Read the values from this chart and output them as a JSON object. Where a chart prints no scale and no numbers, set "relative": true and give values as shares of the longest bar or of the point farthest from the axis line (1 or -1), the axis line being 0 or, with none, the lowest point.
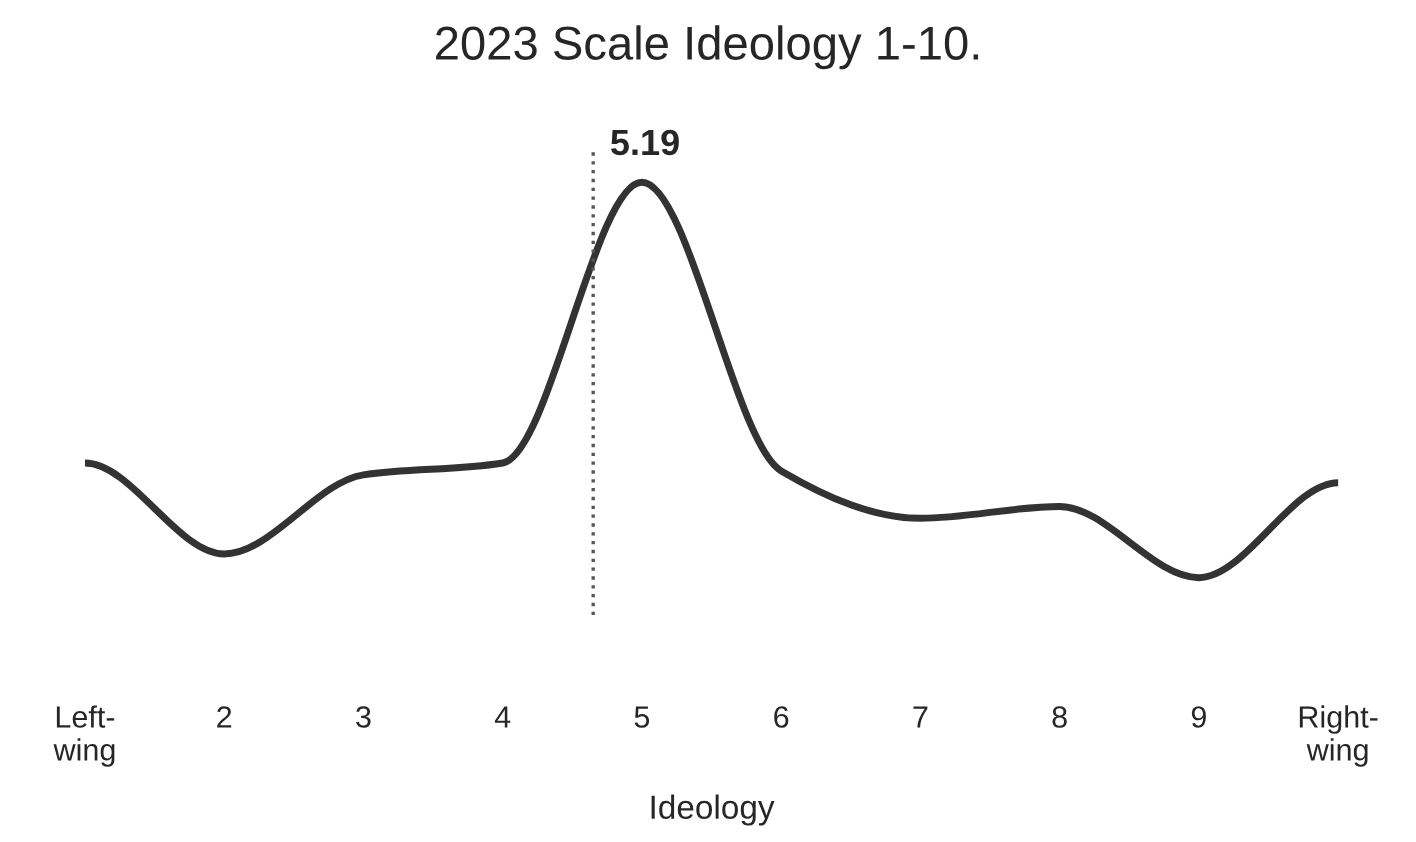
{
  "chart_data": {
    "type": "line",
    "title": "2023 Scale Ideology 1-10.",
    "xlabel": "Ideology",
    "relative": true,
    "x": [
      1,
      2,
      3,
      4,
      5,
      6,
      7,
      8,
      9,
      10
    ],
    "xlim": [
      1,
      10
    ],
    "xticks": [
      {
        "value": 1,
        "label": "Left-\nwing"
      },
      2,
      3,
      4,
      5,
      6,
      7,
      8,
      9,
      {
        "value": 10,
        "label": "Right-\nwing"
      }
    ],
    "series": [
      {
        "color": "#333333",
        "values": [
          0.29,
          0.06,
          0.26,
          0.29,
          1,
          0.27,
          0.15,
          0.18,
          0,
          0.24
        ]
      }
    ],
    "ref_lines": [
      {
        "axis": "x",
        "value": 4.65,
        "color": "#555555",
        "line_style": "dotted"
      }
    ],
    "annotations": [
      "5.19"
    ],
    "grid": false,
    "legend": false,
    "marker": "none",
    "line_style": "solid"
  }
}
